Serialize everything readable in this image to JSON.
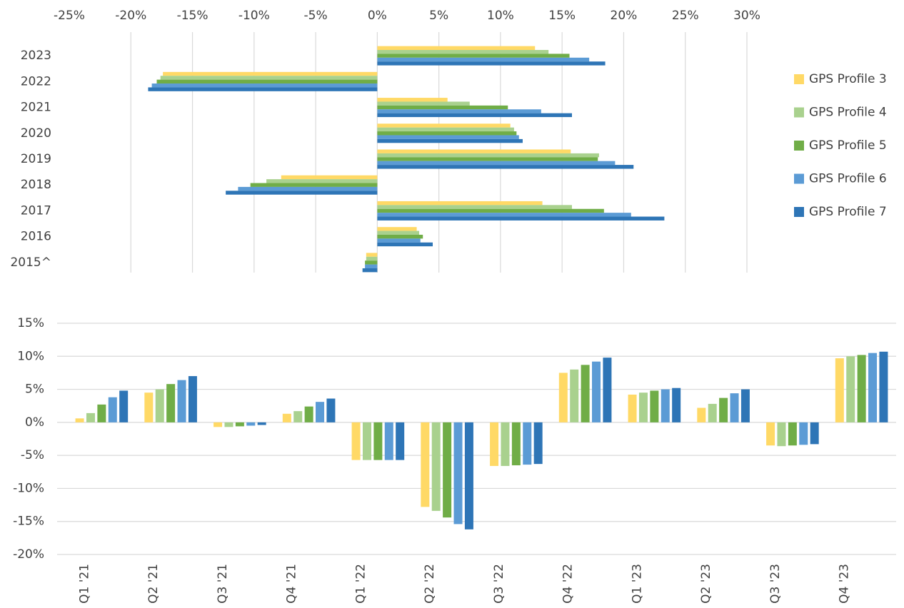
{
  "chart_data": [
    {
      "type": "hbar",
      "categories": [
        "2023",
        "2022",
        "2021",
        "2020",
        "2019",
        "2018",
        "2017",
        "2016",
        "2015^"
      ],
      "series": [
        {
          "name": "GPS Profile 3",
          "color": "#ffd966",
          "values": [
            12.8,
            -17.4,
            5.7,
            10.8,
            15.7,
            -7.8,
            13.4,
            3.2,
            -0.9
          ]
        },
        {
          "name": "GPS Profile 4",
          "color": "#a9d18e",
          "values": [
            13.9,
            -17.6,
            7.5,
            11.1,
            18.0,
            -9.0,
            15.8,
            3.4,
            -0.9
          ]
        },
        {
          "name": "GPS Profile 5",
          "color": "#70ad47",
          "values": [
            15.6,
            -17.9,
            10.6,
            11.3,
            17.9,
            -10.3,
            18.4,
            3.7,
            -1.0
          ]
        },
        {
          "name": "GPS Profile 6",
          "color": "#5b9bd5",
          "values": [
            17.2,
            -18.3,
            13.3,
            11.5,
            19.3,
            -11.3,
            20.6,
            3.5,
            -1.0
          ]
        },
        {
          "name": "GPS Profile 7",
          "color": "#2e75b6",
          "values": [
            18.5,
            -18.6,
            15.8,
            11.8,
            20.8,
            -12.3,
            23.3,
            4.5,
            -1.2
          ]
        }
      ],
      "xlim": [
        -25,
        30
      ],
      "xticks": [
        {
          "value": -25,
          "label": "-25%"
        },
        {
          "value": -20,
          "label": "-20%"
        },
        {
          "value": -15,
          "label": "-15%"
        },
        {
          "value": -10,
          "label": "-10%"
        },
        {
          "value": -5,
          "label": "-5%"
        },
        {
          "value": 0,
          "label": "0%"
        },
        {
          "value": 5,
          "label": "5%"
        },
        {
          "value": 10,
          "label": "10%"
        },
        {
          "value": 15,
          "label": "15%"
        },
        {
          "value": 20,
          "label": "20%"
        },
        {
          "value": 25,
          "label": "25%"
        },
        {
          "value": 30,
          "label": "30%"
        }
      ],
      "grid": true,
      "legend": "right"
    },
    {
      "type": "bar",
      "categories": [
        "Q1 '21",
        "Q2 '21",
        "Q3 '21",
        "Q4 '21",
        "Q1 '22",
        "Q2 '22",
        "Q3 '22",
        "Q4 '22",
        "Q1 '23",
        "Q2 '23",
        "Q3 '23",
        "Q4 '23"
      ],
      "series": [
        {
          "color": "#ffd966",
          "values": [
            0.6,
            4.5,
            -0.7,
            1.3,
            -5.7,
            -12.8,
            -6.6,
            7.5,
            4.2,
            2.2,
            -3.5,
            9.7
          ]
        },
        {
          "color": "#a9d18e",
          "values": [
            1.4,
            5.0,
            -0.7,
            1.7,
            -5.7,
            -13.4,
            -6.6,
            8.0,
            4.5,
            2.8,
            -3.6,
            10.0
          ]
        },
        {
          "color": "#70ad47",
          "values": [
            2.7,
            5.8,
            -0.6,
            2.4,
            -5.7,
            -14.4,
            -6.5,
            8.7,
            4.8,
            3.7,
            -3.5,
            10.2
          ]
        },
        {
          "color": "#5b9bd5",
          "values": [
            3.8,
            6.4,
            -0.5,
            3.1,
            -5.7,
            -15.4,
            -6.4,
            9.2,
            5.0,
            4.4,
            -3.4,
            10.5
          ]
        },
        {
          "color": "#2e75b6",
          "values": [
            4.8,
            7.0,
            -0.4,
            3.6,
            -5.7,
            -16.2,
            -6.3,
            9.8,
            5.2,
            5.0,
            -3.3,
            10.7
          ]
        }
      ],
      "ylim": [
        -20,
        15
      ],
      "yticks": [
        {
          "value": -20,
          "label": "-20%"
        },
        {
          "value": -15,
          "label": "-15%"
        },
        {
          "value": -10,
          "label": "-10%"
        },
        {
          "value": -5,
          "label": "-5%"
        },
        {
          "value": 0,
          "label": "0%"
        },
        {
          "value": 5,
          "label": "5%"
        },
        {
          "value": 10,
          "label": "10%"
        },
        {
          "value": 15,
          "label": "15%"
        }
      ],
      "grid": true
    }
  ]
}
